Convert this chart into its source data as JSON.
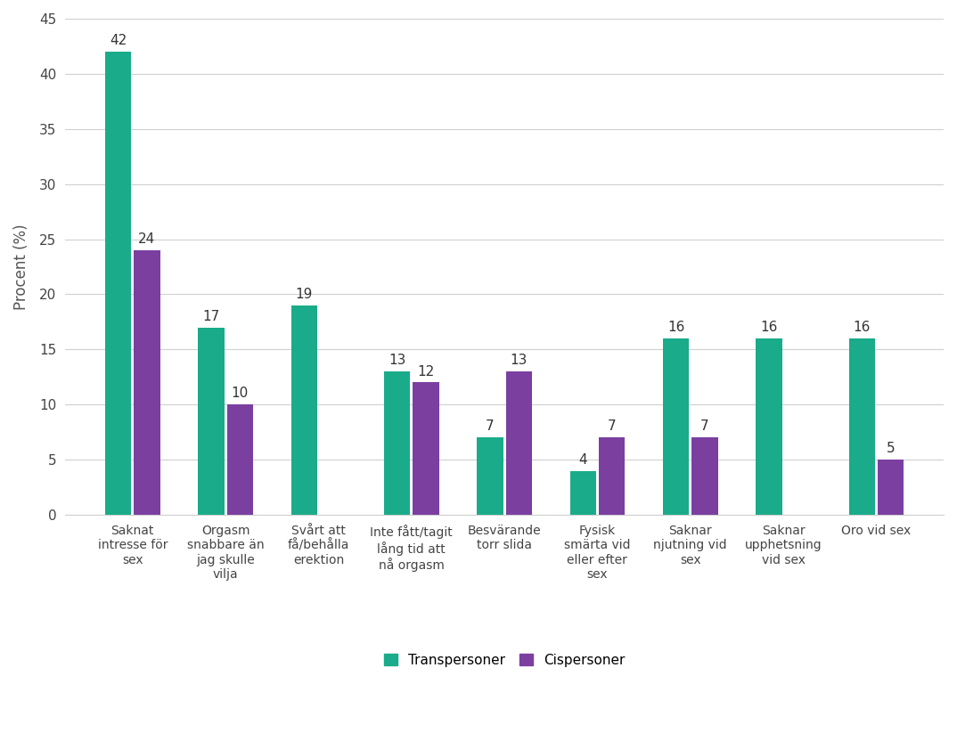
{
  "categories": [
    "Saknat\nintresse för\nsex",
    "Orgasm\nsnabbare än\njag skulle\nvilja",
    "Svårt att\nfå/behålla\nerektion",
    "Inte fått/tagit\nlång tid att\nnå orgasm",
    "Besvärande\ntorr slida",
    "Fysisk\nsmärta vid\neller efter\nsex",
    "Saknar\nnjutning vid\nsex",
    "Saknar\nupphetsning\nvid sex",
    "Oro vid sex"
  ],
  "transpersoner": [
    42,
    17,
    19,
    13,
    7,
    4,
    16,
    16,
    16
  ],
  "cispersoner": [
    24,
    10,
    -1,
    12,
    13,
    7,
    7,
    -1,
    5
  ],
  "trans_color": "#1aab8a",
  "cis_color": "#7b3fa0",
  "ylabel": "Procent (%)",
  "ylim": [
    0,
    45
  ],
  "yticks": [
    0,
    5,
    10,
    15,
    20,
    25,
    30,
    35,
    40,
    45
  ],
  "legend_trans": "Transpersoner",
  "legend_cis": "Cispersoner",
  "background_color": "#ffffff",
  "grid_color": "#d0d0d0",
  "bar_width": 0.28,
  "bar_gap": 0.03
}
